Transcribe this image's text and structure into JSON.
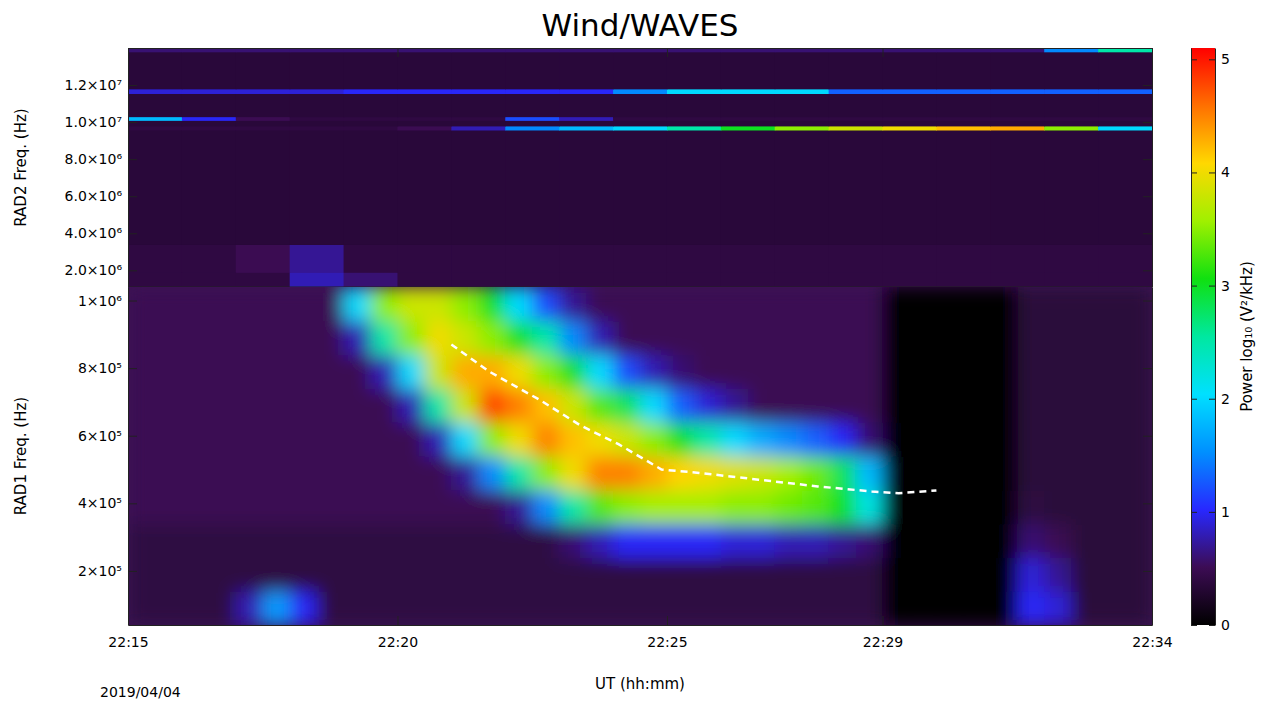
{
  "chart_data": {
    "type": "heatmap",
    "title": "Wind/WAVES",
    "xlabel": "UT (hh:mm)",
    "annotations": [
      "2019/04/04"
    ],
    "xlim": [
      15,
      34
    ],
    "xticks": [
      {
        "value": 15,
        "label": "22:15"
      },
      {
        "value": 20,
        "label": "22:20"
      },
      {
        "value": 25,
        "label": "22:25"
      },
      {
        "value": 29,
        "label": "22:29"
      },
      {
        "value": 34,
        "label": "22:34"
      }
    ],
    "colorbar": {
      "label": "Power log₁₀ (V²/kHz)",
      "lim": [
        0,
        5.1
      ],
      "ticks": [
        0,
        1,
        2,
        3,
        4,
        5
      ]
    },
    "panels": [
      {
        "ylabel": "RAD2 Freq. (Hz)",
        "ylim": [
          1100000,
          14000000
        ],
        "yticks": [
          {
            "value": 2000000,
            "label": "2.0×10⁶"
          },
          {
            "value": 4000000,
            "label": "4.0×10⁶"
          },
          {
            "value": 6000000,
            "label": "6.0×10⁶"
          },
          {
            "value": 8000000,
            "label": "8.0×10⁶"
          },
          {
            "value": 10000000,
            "label": "1.0×10⁷"
          },
          {
            "value": 12000000,
            "label": "1.2×10⁷"
          }
        ],
        "x_edges": [
          15,
          16,
          17,
          18,
          19,
          20,
          21,
          22,
          23,
          24,
          25,
          26,
          27,
          28,
          29,
          30,
          31,
          32,
          33,
          34
        ],
        "y_edges": [
          1100000,
          1900000,
          3400000,
          9580000,
          9800000,
          10100000,
          10300000,
          11550000,
          11800000,
          13800000,
          14000000
        ],
        "cells": [
          [
            0.4,
            0.4,
            0.4,
            0.8,
            0.6,
            0.4,
            0.4,
            0.4,
            0.4,
            0.4,
            0.4,
            0.4,
            0.4,
            0.4,
            0.4,
            0.4,
            0.4,
            0.4,
            0.4
          ],
          [
            0.4,
            0.4,
            0.5,
            0.7,
            0.4,
            0.4,
            0.4,
            0.4,
            0.4,
            0.4,
            0.4,
            0.4,
            0.4,
            0.4,
            0.4,
            0.4,
            0.4,
            0.4,
            0.4
          ],
          [
            0.35,
            0.35,
            0.35,
            0.35,
            0.35,
            0.35,
            0.35,
            0.35,
            0.35,
            0.35,
            0.35,
            0.35,
            0.35,
            0.35,
            0.35,
            0.35,
            0.35,
            0.35,
            0.35
          ],
          [
            0.4,
            0.4,
            0.4,
            0.4,
            0.4,
            0.5,
            0.8,
            1.5,
            1.8,
            2,
            2.5,
            3,
            3.5,
            3.8,
            4,
            4.2,
            4.3,
            3.5,
            2
          ],
          [
            0.35,
            0.35,
            0.35,
            0.35,
            0.35,
            0.35,
            0.35,
            0.35,
            0.35,
            0.35,
            0.35,
            0.35,
            0.35,
            0.35,
            0.35,
            0.35,
            0.35,
            0.35,
            0.35
          ],
          [
            1.8,
            1,
            0.5,
            0.4,
            0.4,
            0.4,
            0.4,
            1.2,
            0.8,
            0.4,
            0.4,
            0.4,
            0.4,
            0.4,
            0.4,
            0.4,
            0.4,
            0.4,
            0.4
          ],
          [
            0.35,
            0.35,
            0.35,
            0.35,
            0.35,
            0.35,
            0.35,
            0.35,
            0.35,
            0.35,
            0.35,
            0.35,
            0.35,
            0.35,
            0.35,
            0.35,
            0.35,
            0.35,
            0.35
          ],
          [
            0.9,
            0.9,
            0.9,
            0.9,
            1,
            1,
            1,
            1,
            1,
            1.5,
            2,
            2,
            2,
            1.3,
            1.3,
            1.3,
            1.3,
            1.3,
            1.3
          ],
          [
            0.35,
            0.35,
            0.35,
            0.35,
            0.35,
            0.35,
            0.35,
            0.35,
            0.35,
            0.35,
            0.35,
            0.35,
            0.35,
            0.35,
            0.35,
            0.35,
            0.35,
            0.35,
            0.35
          ],
          [
            0.6,
            0.6,
            0.6,
            0.6,
            0.6,
            0.6,
            0.6,
            0.6,
            0.6,
            0.6,
            0.6,
            0.6,
            0.6,
            0.6,
            0.6,
            0.6,
            0.6,
            1.5,
            2.5
          ]
        ]
      },
      {
        "ylabel": "RAD1 Freq. (Hz)",
        "ylim": [
          40000,
          1040000
        ],
        "yticks": [
          {
            "value": 200000,
            "label": "2×10⁵"
          },
          {
            "value": 400000,
            "label": "4×10⁵"
          },
          {
            "value": 600000,
            "label": "6×10⁵"
          },
          {
            "value": 800000,
            "label": "8×10⁵"
          },
          {
            "value": 1000000,
            "label": "1×10⁶"
          }
        ],
        "x_edges": [
          15,
          15.5,
          16,
          16.5,
          17,
          17.5,
          18,
          18.5,
          19,
          19.5,
          20,
          20.5,
          21,
          21.5,
          22,
          22.5,
          23,
          23.5,
          24,
          24.5,
          25,
          25.5,
          26,
          26.5,
          27,
          27.5,
          28,
          28.5,
          29,
          29.5,
          30,
          30.5,
          31,
          31.5,
          32,
          32.5,
          33,
          33.5,
          34
        ],
        "y_edges": [
          40000,
          140000,
          240000,
          340000,
          440000,
          540000,
          640000,
          740000,
          840000,
          940000,
          1040000
        ],
        "cells": [
          [
            0.4,
            0.4,
            0.4,
            0.4,
            0.8,
            1.6,
            1.0,
            0.4,
            0.4,
            0.4,
            0.4,
            0.4,
            0.4,
            0.4,
            0.4,
            0.4,
            0.4,
            0.4,
            0.4,
            0.4,
            0.4,
            0.4,
            0.4,
            0.4,
            0.4,
            0.4,
            0.4,
            0.4,
            0,
            0,
            0,
            0,
            0,
            1.0,
            0.9,
            0.35,
            0.35,
            0.35
          ],
          [
            0.4,
            0.4,
            0.4,
            0.4,
            0.4,
            0.4,
            0.4,
            0.4,
            0.4,
            0.4,
            0.4,
            0.4,
            0.4,
            0.4,
            0.4,
            0.4,
            0.4,
            0.4,
            0.4,
            0.4,
            0.4,
            0.4,
            0.4,
            0.4,
            0.4,
            0.4,
            0.4,
            0.4,
            0,
            0,
            0,
            0,
            0,
            0.9,
            0.7,
            0.35,
            0.35,
            0.35
          ],
          [
            0.4,
            0.4,
            0.4,
            0.4,
            0.4,
            0.4,
            0.4,
            0.4,
            0.4,
            0.4,
            0.4,
            0.4,
            0.4,
            0.4,
            0.4,
            0.4,
            0.6,
            0.8,
            1.0,
            1.0,
            1.0,
            1.0,
            0.9,
            0.9,
            0.8,
            0.8,
            0.7,
            0.6,
            0,
            0,
            0,
            0,
            0,
            0.6,
            0.5,
            0.35,
            0.35,
            0.35
          ],
          [
            0.5,
            0.5,
            0.5,
            0.5,
            0.5,
            0.5,
            0.5,
            0.5,
            0.5,
            0.5,
            0.5,
            0.5,
            0.5,
            0.5,
            0.7,
            1.5,
            2.5,
            3.3,
            3.5,
            3.6,
            3.6,
            3.6,
            3.5,
            3.5,
            3.4,
            3.3,
            3.0,
            2.2,
            0,
            0,
            0,
            0,
            0,
            0.4,
            0.35,
            0.35,
            0.35,
            0.35
          ],
          [
            0.5,
            0.5,
            0.5,
            0.5,
            0.5,
            0.5,
            0.5,
            0.5,
            0.5,
            0.5,
            0.5,
            0.5,
            0.7,
            1.5,
            2.5,
            3.5,
            4.0,
            4.5,
            4.5,
            4.3,
            4.1,
            4.0,
            3.9,
            3.8,
            3.6,
            3.4,
            2.8,
            1.8,
            0,
            0,
            0,
            0,
            0,
            0.35,
            0.35,
            0.35,
            0.35,
            0.35
          ],
          [
            0.5,
            0.5,
            0.5,
            0.5,
            0.5,
            0.5,
            0.5,
            0.5,
            0.5,
            0.5,
            0.5,
            0.8,
            2.0,
            3.5,
            4.0,
            4.5,
            4.2,
            4.0,
            3.8,
            3.5,
            3.0,
            2.5,
            2.0,
            1.7,
            1.5,
            1.3,
            1.0,
            0.6,
            0,
            0,
            0,
            0,
            0,
            0.35,
            0.35,
            0.35,
            0.35,
            0.35
          ],
          [
            0.5,
            0.5,
            0.5,
            0.5,
            0.5,
            0.5,
            0.5,
            0.5,
            0.5,
            0.5,
            0.8,
            2.5,
            3.8,
            4.8,
            4.5,
            4.2,
            3.8,
            3.3,
            2.8,
            2.0,
            1.3,
            0.9,
            0.7,
            0.5,
            0.5,
            0.5,
            0.5,
            0.5,
            0,
            0,
            0,
            0,
            0,
            0.35,
            0.35,
            0.35,
            0.35,
            0.35
          ],
          [
            0.5,
            0.5,
            0.5,
            0.5,
            0.5,
            0.5,
            0.5,
            0.5,
            0.5,
            0.8,
            2.0,
            3.8,
            4.3,
            4.3,
            4.0,
            3.5,
            3.0,
            2.0,
            1.2,
            0.8,
            0.6,
            0.5,
            0.5,
            0.5,
            0.5,
            0.5,
            0.5,
            0.5,
            0,
            0,
            0,
            0,
            0,
            0.35,
            0.35,
            0.35,
            0.35,
            0.35
          ],
          [
            0.5,
            0.5,
            0.5,
            0.5,
            0.5,
            0.5,
            0.5,
            0.5,
            0.8,
            2.5,
            3.5,
            4.0,
            3.8,
            3.5,
            3.0,
            2.5,
            1.5,
            0.8,
            0.5,
            0.5,
            0.5,
            0.5,
            0.5,
            0.5,
            0.5,
            0.5,
            0.5,
            0.5,
            0,
            0,
            0,
            0,
            0,
            0.35,
            0.35,
            0.35,
            0.35,
            0.35
          ],
          [
            0.5,
            0.5,
            0.5,
            0.5,
            0.5,
            0.5,
            0.5,
            0.5,
            2.0,
            3.5,
            3.8,
            3.8,
            3.5,
            3.0,
            2.0,
            1.2,
            0.7,
            0.5,
            0.5,
            0.5,
            0.5,
            0.5,
            0.5,
            0.5,
            0.5,
            0.5,
            0.5,
            0.5,
            0,
            0,
            0,
            0,
            0,
            0.35,
            0.35,
            0.35,
            0.35,
            0.35
          ]
        ],
        "series": [
          {
            "color": "#ffffff",
            "line_style": "dashed",
            "x": [
              21.0,
              21.7,
              22.65,
              23.4,
              24.1,
              24.9,
              25.6,
              26.7,
              27.8,
              28.8,
              29.3,
              30.0
            ],
            "values": [
              870000,
              790000,
              705000,
              630000,
              575000,
              500000,
              490000,
              470000,
              450000,
              435000,
              430000,
              438000
            ]
          }
        ]
      }
    ]
  }
}
